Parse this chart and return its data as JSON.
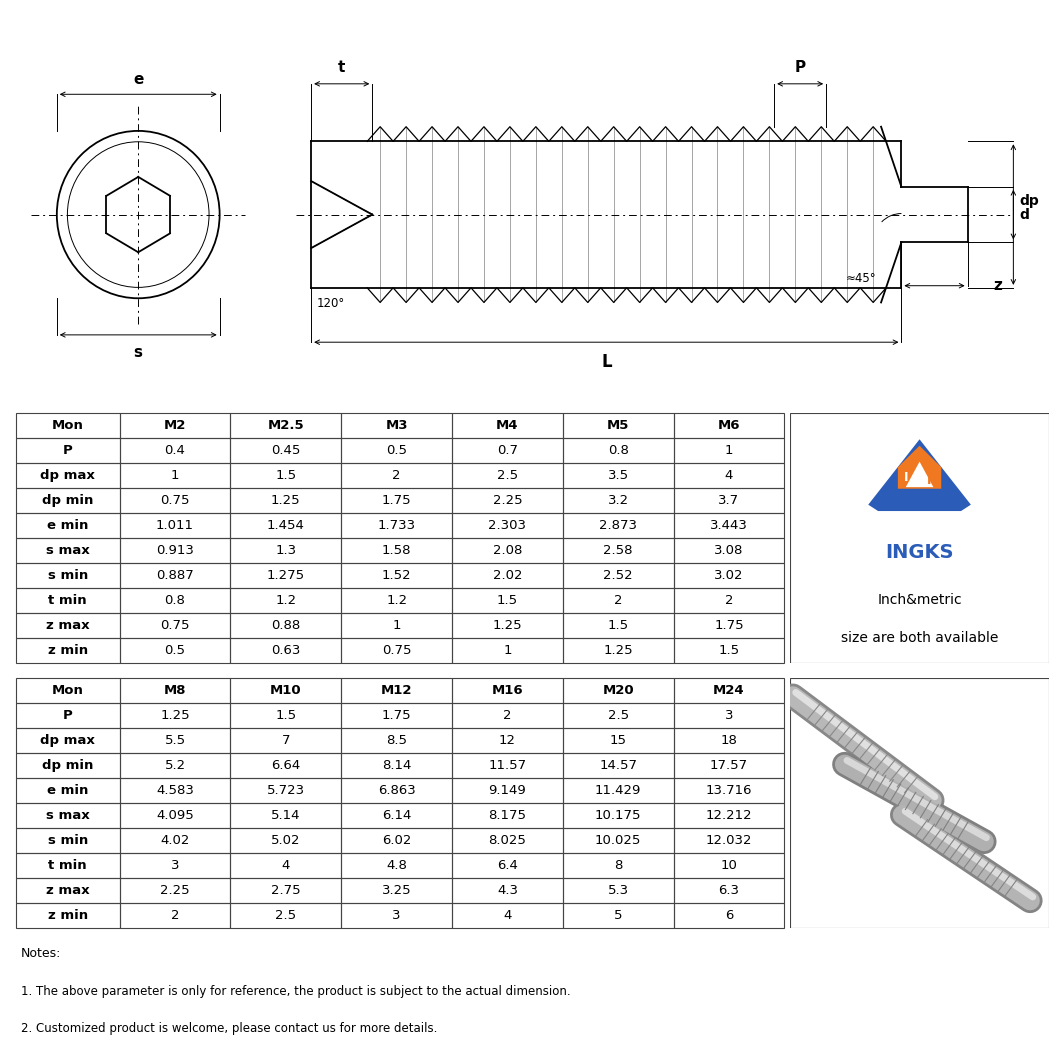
{
  "table1_headers": [
    "Mon",
    "M2",
    "M2.5",
    "M3",
    "M4",
    "M5",
    "M6"
  ],
  "table1_rows": [
    [
      "P",
      "0.4",
      "0.45",
      "0.5",
      "0.7",
      "0.8",
      "1"
    ],
    [
      "dp max",
      "1",
      "1.5",
      "2",
      "2.5",
      "3.5",
      "4"
    ],
    [
      "dp min",
      "0.75",
      "1.25",
      "1.75",
      "2.25",
      "3.2",
      "3.7"
    ],
    [
      "e min",
      "1.011",
      "1.454",
      "1.733",
      "2.303",
      "2.873",
      "3.443"
    ],
    [
      "s max",
      "0.913",
      "1.3",
      "1.58",
      "2.08",
      "2.58",
      "3.08"
    ],
    [
      "s min",
      "0.887",
      "1.275",
      "1.52",
      "2.02",
      "2.52",
      "3.02"
    ],
    [
      "t min",
      "0.8",
      "1.2",
      "1.2",
      "1.5",
      "2",
      "2"
    ],
    [
      "z max",
      "0.75",
      "0.88",
      "1",
      "1.25",
      "1.5",
      "1.75"
    ],
    [
      "z min",
      "0.5",
      "0.63",
      "0.75",
      "1",
      "1.25",
      "1.5"
    ]
  ],
  "table2_headers": [
    "Mon",
    "M8",
    "M10",
    "M12",
    "M16",
    "M20",
    "M24"
  ],
  "table2_rows": [
    [
      "P",
      "1.25",
      "1.5",
      "1.75",
      "2",
      "2.5",
      "3"
    ],
    [
      "dp max",
      "5.5",
      "7",
      "8.5",
      "12",
      "15",
      "18"
    ],
    [
      "dp min",
      "5.2",
      "6.64",
      "8.14",
      "11.57",
      "14.57",
      "17.57"
    ],
    [
      "e min",
      "4.583",
      "5.723",
      "6.863",
      "9.149",
      "11.429",
      "13.716"
    ],
    [
      "s max",
      "4.095",
      "5.14",
      "6.14",
      "8.175",
      "10.175",
      "12.212"
    ],
    [
      "s min",
      "4.02",
      "5.02",
      "6.02",
      "8.025",
      "10.025",
      "12.032"
    ],
    [
      "t min",
      "3",
      "4",
      "4.8",
      "6.4",
      "8",
      "10"
    ],
    [
      "z max",
      "2.25",
      "2.75",
      "3.25",
      "4.3",
      "5.3",
      "6.3"
    ],
    [
      "z min",
      "2",
      "2.5",
      "3",
      "4",
      "5",
      "6"
    ]
  ],
  "notes": [
    "Notes:",
    "1. The above parameter is only for reference, the product is subject to the actual dimension.",
    "2. Customized product is welcome, please contact us for more details."
  ],
  "brand_name": "INGKS",
  "brand_tagline": "Inch&metric\nsize are both available",
  "bg_color": "#ffffff",
  "table_border_color": "#555555"
}
